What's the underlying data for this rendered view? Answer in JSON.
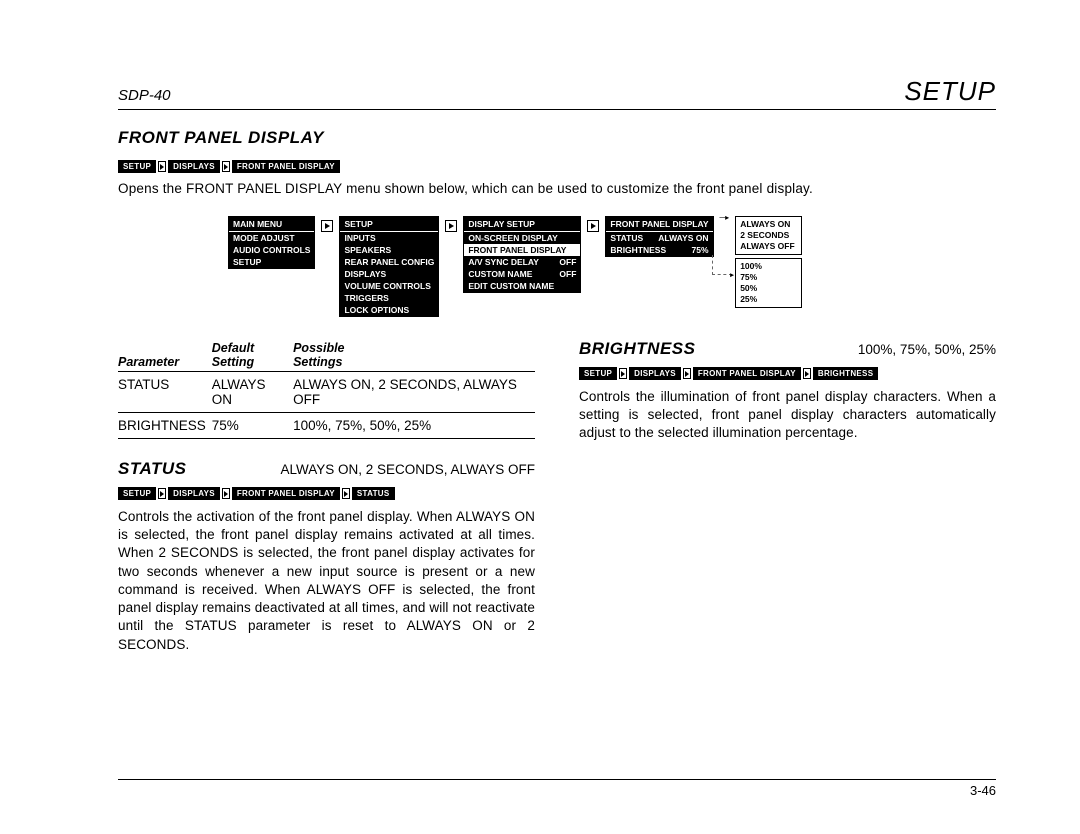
{
  "header": {
    "model": "SDP-40",
    "page_header": "SETUP"
  },
  "section_title": "FRONT PANEL DISPLAY",
  "breadcrumb_main": [
    "SETUP",
    "DISPLAYS",
    "FRONT PANEL DISPLAY"
  ],
  "intro": "Opens the FRONT PANEL DISPLAY menu shown below, which can be used to customize the front panel display.",
  "menus": {
    "m1": {
      "title": "MAIN MENU",
      "items": [
        "MODE ADJUST",
        "AUDIO CONTROLS",
        "SETUP"
      ]
    },
    "m2": {
      "title": "SETUP",
      "items": [
        "INPUTS",
        "SPEAKERS",
        "REAR PANEL CONFIG",
        "DISPLAYS",
        "VOLUME CONTROLS",
        "TRIGGERS",
        "LOCK OPTIONS"
      ]
    },
    "m3": {
      "title": "DISPLAY SETUP",
      "items": [
        {
          "l": "ON-SCREEN DISPLAY",
          "r": ""
        },
        {
          "l": "FRONT PANEL DISPLAY",
          "r": "",
          "light": true
        },
        {
          "l": "A/V SYNC DELAY",
          "r": "OFF"
        },
        {
          "l": "CUSTOM NAME",
          "r": "OFF"
        },
        {
          "l": "EDIT CUSTOM NAME",
          "r": ""
        }
      ]
    },
    "m4": {
      "title": "FRONT PANEL DISPLAY",
      "items": [
        {
          "l": "STATUS",
          "r": "ALWAYS ON"
        },
        {
          "l": "BRIGHTNESS",
          "r": "75%"
        }
      ]
    },
    "opts_status": [
      "ALWAYS ON",
      "2 SECONDS",
      "ALWAYS OFF"
    ],
    "opts_brightness": [
      "100%",
      "75%",
      "50%",
      "25%"
    ]
  },
  "param_table": {
    "headers": [
      "Parameter",
      "Default Setting",
      "Possible Settings"
    ],
    "rows": [
      [
        "STATUS",
        "ALWAYS ON",
        "ALWAYS ON, 2 SECONDS, ALWAYS OFF"
      ],
      [
        "BRIGHTNESS",
        "75%",
        "100%, 75%, 50%, 25%"
      ]
    ]
  },
  "status": {
    "title": "STATUS",
    "options": "ALWAYS ON, 2 SECONDS, ALWAYS OFF",
    "breadcrumb": [
      "SETUP",
      "DISPLAYS",
      "FRONT PANEL DISPLAY",
      "STATUS"
    ],
    "text": "Controls the activation of the front panel display. When ALWAYS ON is selected, the front panel display remains activated at all times. When 2 SECONDS is selected, the front panel display activates for two seconds whenever a new input source is present or a new command is received. When ALWAYS OFF is selected, the front panel display remains deactivated at all times, and will not reactivate until the STATUS parameter is reset to ALWAYS ON or 2 SECONDS."
  },
  "brightness": {
    "title": "BRIGHTNESS",
    "options": "100%, 75%, 50%, 25%",
    "breadcrumb": [
      "SETUP",
      "DISPLAYS",
      "FRONT PANEL DISPLAY",
      "BRIGHTNESS"
    ],
    "text": "Controls the illumination of front panel display characters. When a setting is selected, front panel display characters automatically adjust to the selected illumination percentage."
  },
  "footer": "3-46"
}
